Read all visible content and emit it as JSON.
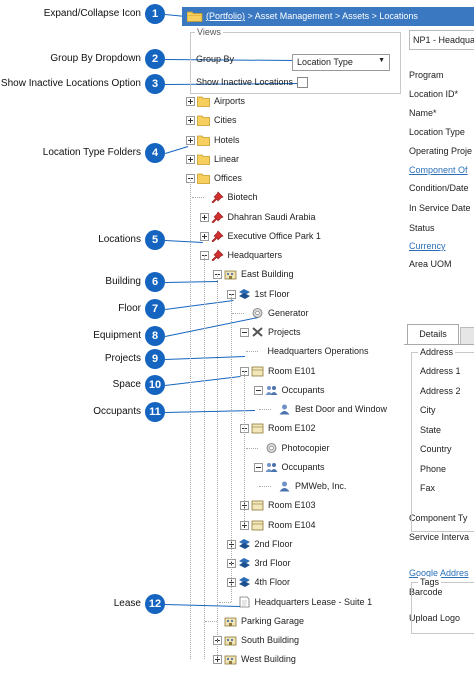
{
  "header": {
    "portfolio_link": "(Portfolio)",
    "path": " > Asset Management > Assets > Locations"
  },
  "callouts": [
    {
      "num": "1",
      "label": "Expand/Collapse Icon"
    },
    {
      "num": "2",
      "label": "Group By Dropdown"
    },
    {
      "num": "3",
      "label": "Show Inactive Locations Option"
    },
    {
      "num": "4",
      "label": "Location Type Folders"
    },
    {
      "num": "5",
      "label": "Locations"
    },
    {
      "num": "6",
      "label": "Building"
    },
    {
      "num": "7",
      "label": "Floor"
    },
    {
      "num": "8",
      "label": "Equipment"
    },
    {
      "num": "9",
      "label": "Projects"
    },
    {
      "num": "10",
      "label": "Space"
    },
    {
      "num": "11",
      "label": "Occupants"
    },
    {
      "num": "12",
      "label": "Lease"
    }
  ],
  "views": {
    "legend": "Views",
    "group_by_label": "Group By",
    "group_by_value": "Location Type",
    "show_inactive_label": "Show Inactive Locations"
  },
  "tree": [
    {
      "label": "Airports",
      "icon": "folder-icon",
      "exp": "plus"
    },
    {
      "label": "Cities",
      "icon": "folder-icon",
      "exp": "plus"
    },
    {
      "label": "Hotels",
      "icon": "folder-icon",
      "exp": "plus"
    },
    {
      "label": "Linear",
      "icon": "folder-icon",
      "exp": "plus"
    },
    {
      "label": "Offices",
      "icon": "folder-icon",
      "exp": "minus"
    },
    {
      "label": "Biotech",
      "icon": "pin-icon",
      "exp": ""
    },
    {
      "label": "Dhahran Saudi Arabia",
      "icon": "pin-icon",
      "exp": "plus"
    },
    {
      "label": "Executive Office Park 1",
      "icon": "pin-icon",
      "exp": "plus"
    },
    {
      "label": "Headquarters",
      "icon": "pin-icon",
      "exp": "minus"
    },
    {
      "label": "East Building",
      "icon": "building-icon",
      "exp": "minus"
    },
    {
      "label": "1st Floor",
      "icon": "floor-icon",
      "exp": "minus"
    },
    {
      "label": "Generator",
      "icon": "gear-icon",
      "exp": ""
    },
    {
      "label": "Projects",
      "icon": "tools-icon",
      "exp": "minus"
    },
    {
      "label": "Headquarters Operations",
      "icon": "",
      "exp": ""
    },
    {
      "label": "Room E101",
      "icon": "room-icon",
      "exp": "minus"
    },
    {
      "label": "Occupants",
      "icon": "people-icon",
      "exp": "minus"
    },
    {
      "label": "Best Door and Window",
      "icon": "person-icon",
      "exp": ""
    },
    {
      "label": "Room E102",
      "icon": "room-icon",
      "exp": "minus"
    },
    {
      "label": "Photocopier",
      "icon": "gear-icon",
      "exp": ""
    },
    {
      "label": "Occupants",
      "icon": "people-icon",
      "exp": "minus"
    },
    {
      "label": "PMWeb, Inc.",
      "icon": "person-icon",
      "exp": ""
    },
    {
      "label": "Room E103",
      "icon": "room-icon",
      "exp": "plus"
    },
    {
      "label": "Room E104",
      "icon": "room-icon",
      "exp": "plus"
    },
    {
      "label": "2nd Floor",
      "icon": "floor-icon",
      "exp": "plus"
    },
    {
      "label": "3rd Floor",
      "icon": "floor-icon",
      "exp": "plus"
    },
    {
      "label": "4th Floor",
      "icon": "floor-icon",
      "exp": "plus"
    },
    {
      "label": "Headquarters Lease - Suite 1",
      "icon": "lease-icon",
      "exp": ""
    },
    {
      "label": "Parking Garage",
      "icon": "building-icon",
      "exp": ""
    },
    {
      "label": "South Building",
      "icon": "building-icon",
      "exp": "plus"
    },
    {
      "label": "West Building",
      "icon": "building-icon",
      "exp": "plus"
    }
  ],
  "form": {
    "record_title": "NP1 - Headqua",
    "fields": [
      "Program",
      "Location ID*",
      "Name*",
      "Location Type",
      "Operating Proje"
    ],
    "component_of": "Component Of",
    "fields2": [
      "Condition/Date",
      "In Service Date",
      "Status"
    ],
    "currency": "Currency",
    "area_uom": "Area UOM",
    "tab_details": "Details",
    "address_legend": "Address",
    "address_fields": [
      "Address 1",
      "Address 2",
      "City",
      "State",
      "Country",
      "Phone",
      "Fax"
    ],
    "component_type": "Component Ty",
    "service_interval": "Service Interva",
    "tags_legend": "Tags",
    "google_address": "Google Addres",
    "barcode": "Barcode",
    "upload_logo": "Upload Logo"
  },
  "colors": {
    "accent": "#1565c0",
    "header": "#3a78c2",
    "folder": "#f0c24a",
    "pin": "#d32f2f",
    "link": "#2a6fb8"
  }
}
